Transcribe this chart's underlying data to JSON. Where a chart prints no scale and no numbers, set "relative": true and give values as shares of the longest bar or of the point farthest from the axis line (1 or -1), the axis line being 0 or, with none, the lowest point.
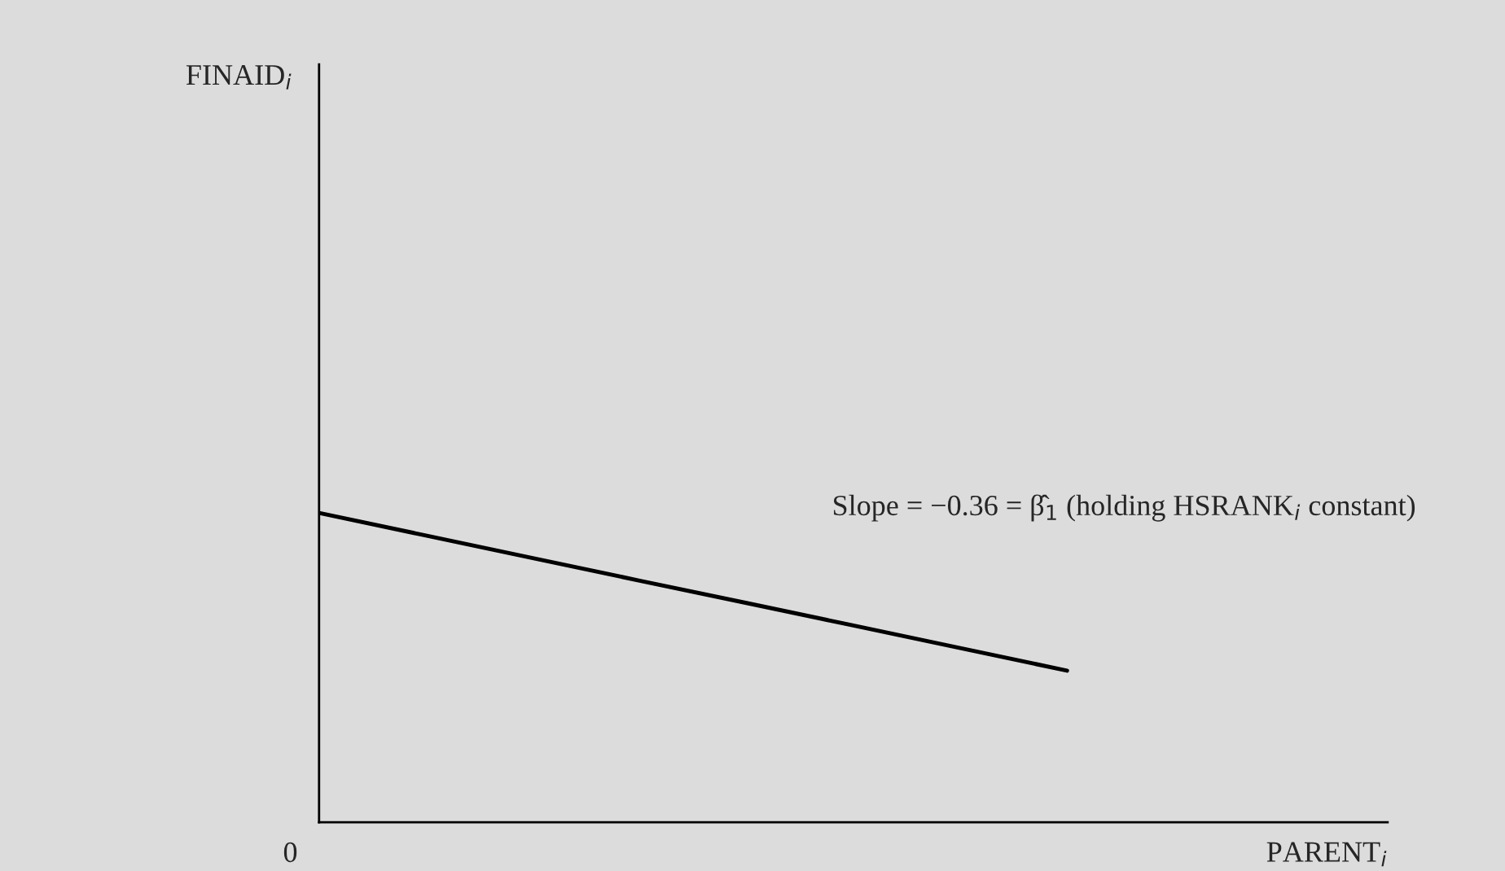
{
  "chart_data": {
    "type": "line",
    "relative": true,
    "categories": [
      null,
      null,
      null,
      null,
      null,
      null,
      null,
      null,
      null,
      null,
      null
    ],
    "series": [
      {
        "color": "#000000",
        "values": [
          1,
          0.927,
          0.854,
          0.781,
          0.709,
          0.636,
          0.563,
          0.49,
          null,
          null,
          null
        ]
      }
    ],
    "xlabel": "PARENT$_{i}$",
    "annotations": [
      "Slope = −0.36 = β̂$_{1}$ (holding HSRANK$_{i}$ constant)",
      "0",
      "FINAID$_{i}$"
    ],
    "grid": false,
    "legend": false,
    "marker": "none",
    "line_style": "solid"
  }
}
